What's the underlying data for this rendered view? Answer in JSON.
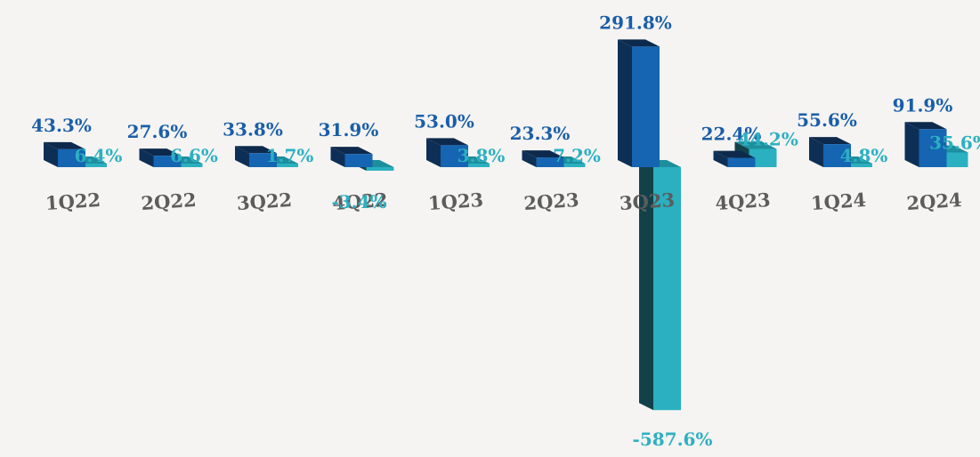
{
  "chart_data": {
    "type": "bar",
    "style": "3d-clustered-column",
    "categories": [
      "1Q22",
      "2Q22",
      "3Q22",
      "4Q22",
      "1Q23",
      "2Q23",
      "3Q23",
      "4Q23",
      "1Q24",
      "2Q24"
    ],
    "series": [
      {
        "values": [
          43.3,
          27.6,
          33.8,
          31.9,
          53.0,
          23.3,
          291.8,
          22.4,
          55.6,
          91.9
        ],
        "labels": [
          "43.3%",
          "27.6%",
          "33.8%",
          "31.9%",
          "53.0%",
          "23.3%",
          "291.8%",
          "22.4%",
          "55.6%",
          "91.9%"
        ]
      },
      {
        "values": [
          6.4,
          6.6,
          1.7,
          -3.4,
          3.8,
          7.2,
          -587.6,
          44.2,
          4.8,
          35.6
        ],
        "labels": [
          "6.4%",
          "6.6%",
          "1.7%",
          "-3.4%",
          "3.8%",
          "7.2%",
          "-587.6%",
          "44.2%",
          "4.8%",
          "35.6%"
        ]
      }
    ],
    "colors": {
      "series1_front": "#1565b2",
      "series1_side": "#0e2f55",
      "series1_top": "#0d2a4d",
      "series1_label": "#1a5ea8",
      "series2_front": "#2ab0c0",
      "series2_side": "#12414a",
      "series2_top": "#1d8f9c",
      "series2_label": "#2cb0c2",
      "tick_label": "#5c5c5c",
      "background": "#f5f4f2"
    },
    "ylim": [
      -587.6,
      291.8
    ],
    "grid": false,
    "legend": "none"
  }
}
